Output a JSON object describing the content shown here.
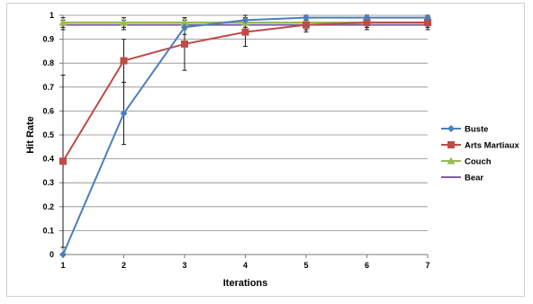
{
  "chart_data": {
    "type": "line",
    "title": "",
    "xlabel": "Iterations",
    "ylabel": "Hit Rate",
    "x": [
      1,
      2,
      3,
      4,
      5,
      6,
      7
    ],
    "xlim": [
      1,
      7
    ],
    "ylim": [
      0,
      1
    ],
    "y_ticks": [
      "0",
      "0.1",
      "0.2",
      "0.3",
      "0.4",
      "0.5",
      "0.6",
      "0.7",
      "0.8",
      "0.9",
      "1"
    ],
    "x_ticks": [
      "1",
      "2",
      "3",
      "4",
      "5",
      "6",
      "7"
    ],
    "grid": "horizontal",
    "legend_position": "right",
    "series": [
      {
        "name": "Buste",
        "color": "#4a7ebb",
        "marker": "diamond",
        "values": [
          0.0,
          0.59,
          0.95,
          0.98,
          0.99,
          0.99,
          0.99
        ],
        "error": [
          0.0,
          0.13,
          0.03,
          0.02,
          0.01,
          0.01,
          0.01
        ]
      },
      {
        "name": "Arts Martiaux",
        "color": "#be4b48",
        "marker": "square",
        "values": [
          0.39,
          0.81,
          0.88,
          0.93,
          0.96,
          0.97,
          0.97
        ],
        "error": [
          0.36,
          0.09,
          0.11,
          0.06,
          0.03,
          0.02,
          0.02
        ]
      },
      {
        "name": "Couch",
        "color": "#98b954",
        "marker": "triangle",
        "values": [
          0.97,
          0.97,
          0.97,
          0.97,
          0.97,
          0.97,
          0.97
        ],
        "error": [
          0.02,
          0.02,
          0.02,
          0.02,
          0.02,
          0.02,
          0.02
        ]
      },
      {
        "name": "Bear",
        "color": "#7d60a0",
        "marker": "none",
        "values": [
          0.96,
          0.96,
          0.96,
          0.96,
          0.96,
          0.96,
          0.96
        ],
        "error": [
          0.02,
          0.02,
          0.02,
          0.02,
          0.02,
          0.02,
          0.02
        ]
      }
    ]
  }
}
